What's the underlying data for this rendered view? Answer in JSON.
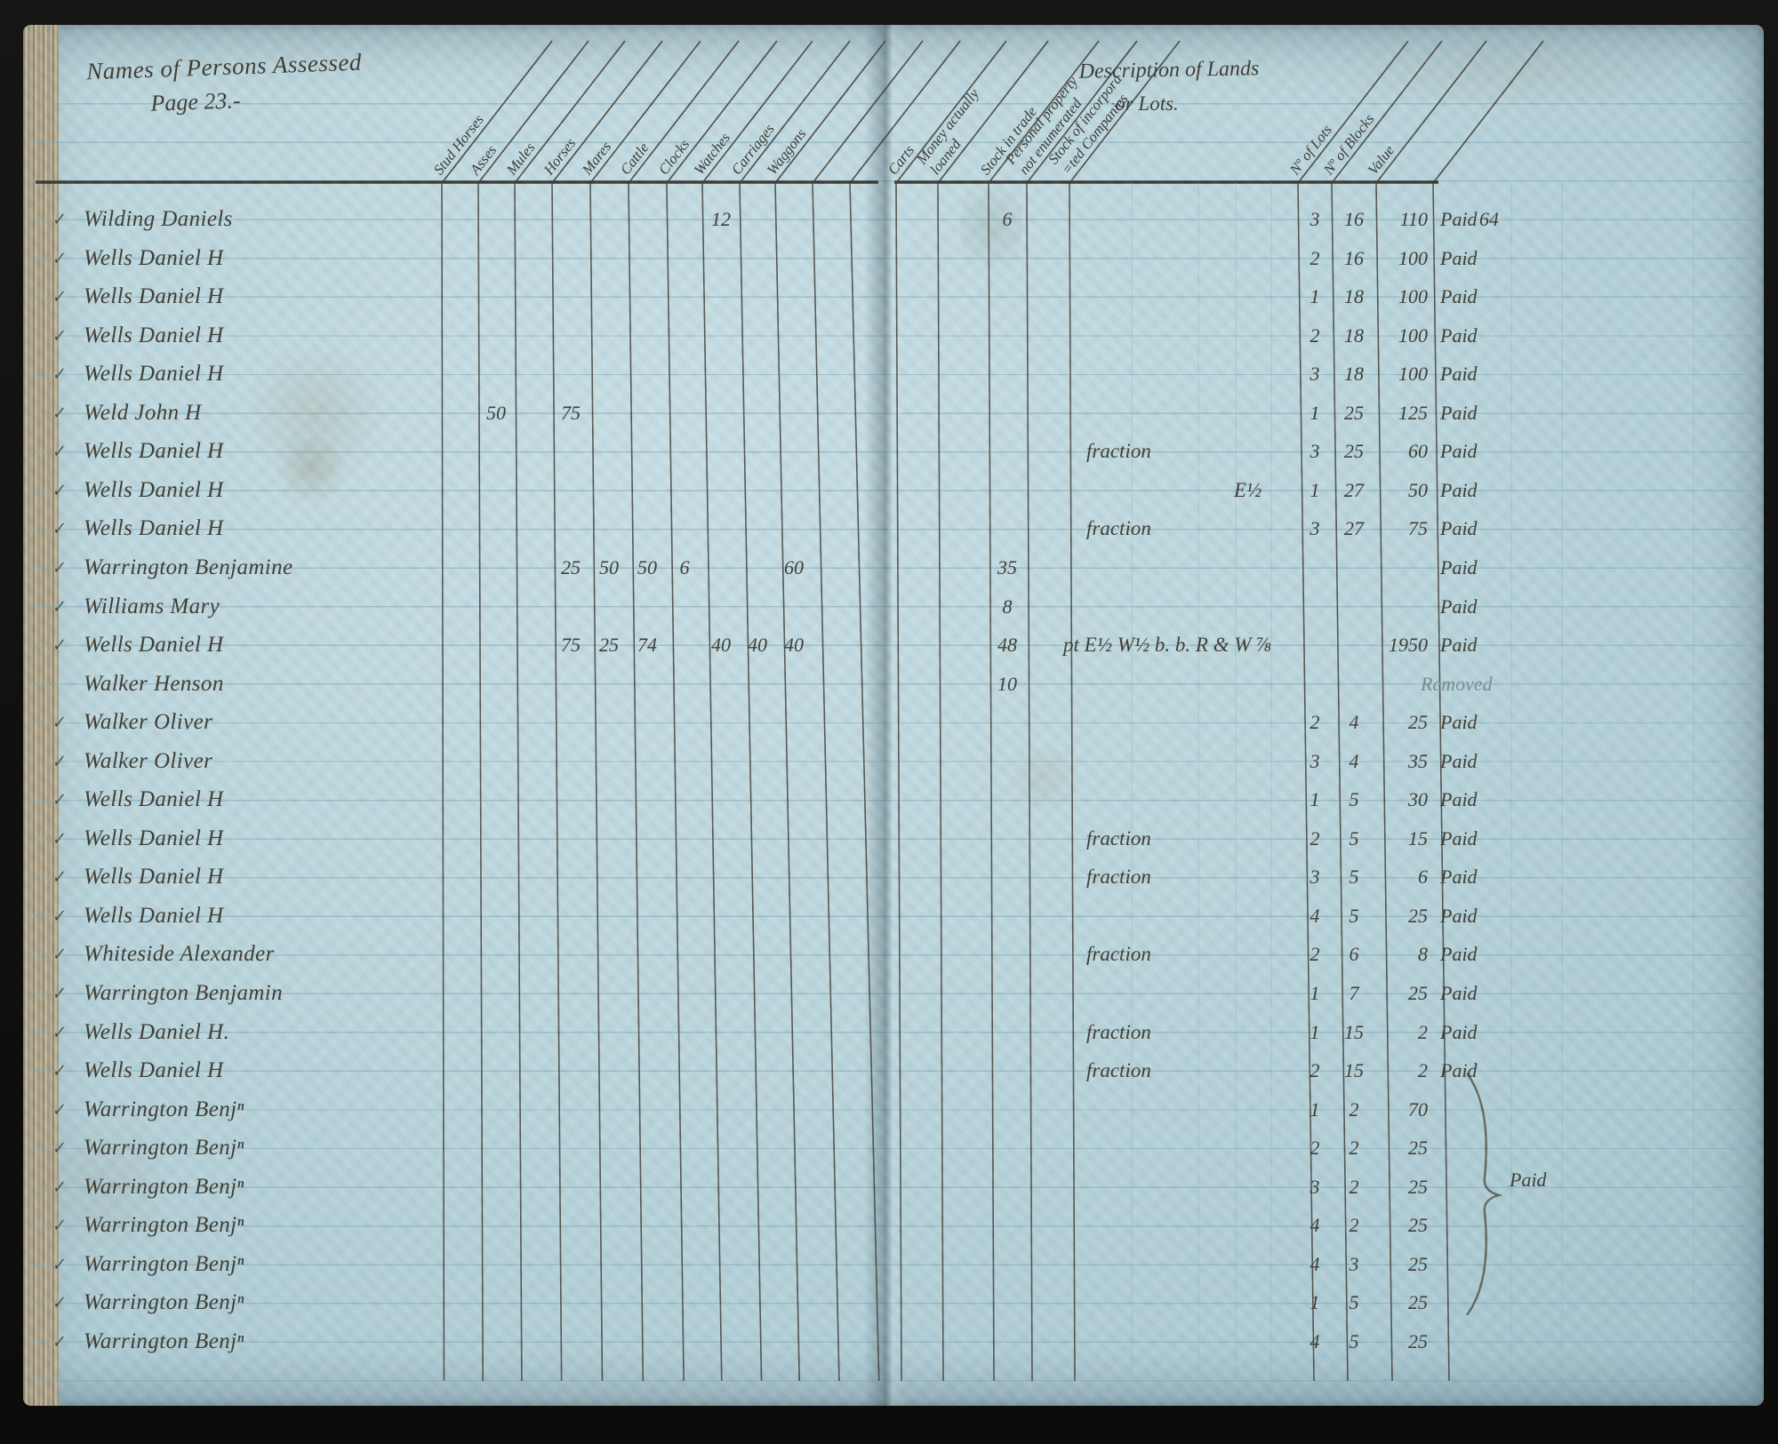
{
  "page": {
    "title_line1": "Names of Persons Assessed",
    "title_line2": "Page 23.-",
    "check_mark": "✓"
  },
  "table": {
    "description_header_line1": "Description of Lands",
    "description_header_line2": "or Lots.",
    "columns": [
      {
        "key": "stud_horses",
        "label": "Stud Horses"
      },
      {
        "key": "asses",
        "label": "Asses"
      },
      {
        "key": "mules",
        "label": "Mules"
      },
      {
        "key": "horses",
        "label": "Horses"
      },
      {
        "key": "mares",
        "label": "Mares"
      },
      {
        "key": "cattle",
        "label": "Cattle"
      },
      {
        "key": "clocks",
        "label": "Clocks"
      },
      {
        "key": "watches",
        "label": "Watches"
      },
      {
        "key": "carriages",
        "label": "Carriages"
      },
      {
        "key": "waggons",
        "label": "Waggons"
      },
      {
        "key": "carts",
        "label": "Carts"
      },
      {
        "key": "money_loaned",
        "label": "Money actually\nloaned"
      },
      {
        "key": "stock_in_trade",
        "label": "Stock in trade"
      },
      {
        "key": "personal_property",
        "label": "Personal property\nnot enumerated"
      },
      {
        "key": "stock_incorporated",
        "label": "Stock of incorpora\n=ted Companies"
      }
    ],
    "lot_columns": [
      {
        "key": "lots",
        "label": "Nº of Lots"
      },
      {
        "key": "blocks",
        "label": "Nº of Blocks"
      },
      {
        "key": "value",
        "label": "Value"
      }
    ]
  },
  "rows": [
    {
      "checked": true,
      "name": "Wilding Daniels",
      "values": {
        "watches": "12",
        "stock_in_trade": "6"
      },
      "description": "",
      "desc_pos": "",
      "lots": "3",
      "blocks": "16",
      "value": "110",
      "status": "Paid",
      "status_note": "64",
      "pencil": false
    },
    {
      "checked": true,
      "name": "Wells Daniel H",
      "values": {},
      "description": "",
      "desc_pos": "",
      "lots": "2",
      "blocks": "16",
      "value": "100",
      "status": "Paid",
      "status_note": "",
      "pencil": false
    },
    {
      "checked": true,
      "name": "Wells Daniel H",
      "values": {},
      "description": "",
      "desc_pos": "",
      "lots": "1",
      "blocks": "18",
      "value": "100",
      "status": "Paid",
      "status_note": "",
      "pencil": false
    },
    {
      "checked": true,
      "name": "Wells Daniel H",
      "values": {},
      "description": "",
      "desc_pos": "",
      "lots": "2",
      "blocks": "18",
      "value": "100",
      "status": "Paid",
      "status_note": "",
      "pencil": false
    },
    {
      "checked": true,
      "name": "Wells Daniel H",
      "values": {},
      "description": "",
      "desc_pos": "",
      "lots": "3",
      "blocks": "18",
      "value": "100",
      "status": "Paid",
      "status_note": "",
      "pencil": false
    },
    {
      "checked": true,
      "name": "Weld John H",
      "values": {
        "asses": "50",
        "horses": "75"
      },
      "description": "",
      "desc_pos": "",
      "lots": "1",
      "blocks": "25",
      "value": "125",
      "status": "Paid",
      "status_note": "",
      "pencil": false
    },
    {
      "checked": true,
      "name": "Wells Daniel H",
      "values": {},
      "description": "fraction",
      "desc_pos": "left",
      "lots": "3",
      "blocks": "25",
      "value": "60",
      "status": "Paid",
      "status_note": "",
      "pencil": false
    },
    {
      "checked": true,
      "name": "Wells Daniel H",
      "values": {},
      "description": "E½",
      "desc_pos": "mid",
      "lots": "1",
      "blocks": "27",
      "value": "50",
      "status": "Paid",
      "status_note": "",
      "pencil": false
    },
    {
      "checked": true,
      "name": "Wells Daniel H",
      "values": {},
      "description": "fraction",
      "desc_pos": "left",
      "lots": "3",
      "blocks": "27",
      "value": "75",
      "status": "Paid",
      "status_note": "",
      "pencil": false
    },
    {
      "checked": true,
      "name": "Warrington Benjamine",
      "values": {
        "horses": "25",
        "mares": "50",
        "cattle": "50",
        "clocks": "6",
        "waggons": "60",
        "stock_in_trade": "35"
      },
      "description": "",
      "desc_pos": "",
      "lots": "",
      "blocks": "",
      "value": "",
      "status": "Paid",
      "status_note": "",
      "pencil": false
    },
    {
      "checked": true,
      "name": "Williams Mary",
      "values": {
        "stock_in_trade": "8"
      },
      "description": "",
      "desc_pos": "",
      "lots": "",
      "blocks": "",
      "value": "",
      "status": "Paid",
      "status_note": "",
      "pencil": false
    },
    {
      "checked": true,
      "name": "Wells Daniel H",
      "values": {
        "horses": "75",
        "mares": "25",
        "cattle": "74",
        "watches": "40",
        "carriages": "40",
        "waggons": "40",
        "stock_in_trade": "48"
      },
      "description": "pt E½ W½ b. b. R & W ⅞",
      "desc_pos": "long",
      "lots": "",
      "blocks": "",
      "value": "1950",
      "status": "Paid",
      "status_note": "",
      "pencil": false
    },
    {
      "checked": false,
      "name": "Walker Henson",
      "values": {
        "stock_in_trade": "10"
      },
      "description": "",
      "desc_pos": "",
      "lots": "",
      "blocks": "",
      "value": "",
      "status": "Removed",
      "status_note": "",
      "pencil": true
    },
    {
      "checked": true,
      "name": "Walker Oliver",
      "values": {},
      "description": "",
      "desc_pos": "",
      "lots": "2",
      "blocks": "4",
      "value": "25",
      "status": "Paid",
      "status_note": "",
      "pencil": false
    },
    {
      "checked": true,
      "name": "Walker Oliver",
      "values": {},
      "description": "",
      "desc_pos": "",
      "lots": "3",
      "blocks": "4",
      "value": "35",
      "status": "Paid",
      "status_note": "",
      "pencil": false
    },
    {
      "checked": true,
      "name": "Wells Daniel H",
      "values": {},
      "description": "",
      "desc_pos": "",
      "lots": "1",
      "blocks": "5",
      "value": "30",
      "status": "Paid",
      "status_note": "",
      "pencil": false
    },
    {
      "checked": true,
      "name": "Wells Daniel H",
      "values": {},
      "description": "fraction",
      "desc_pos": "left",
      "lots": "2",
      "blocks": "5",
      "value": "15",
      "status": "Paid",
      "status_note": "",
      "pencil": false
    },
    {
      "checked": true,
      "name": "Wells Daniel H",
      "values": {},
      "description": "fraction",
      "desc_pos": "left",
      "lots": "3",
      "blocks": "5",
      "value": "6",
      "status": "Paid",
      "status_note": "",
      "pencil": false
    },
    {
      "checked": true,
      "name": "Wells Daniel H",
      "values": {},
      "description": "",
      "desc_pos": "",
      "lots": "4",
      "blocks": "5",
      "value": "25",
      "status": "Paid",
      "status_note": "",
      "pencil": false
    },
    {
      "checked": true,
      "name": "Whiteside Alexander",
      "values": {},
      "description": "fraction",
      "desc_pos": "left",
      "lots": "2",
      "blocks": "6",
      "value": "8",
      "status": "Paid",
      "status_note": "",
      "pencil": false
    },
    {
      "checked": true,
      "name": "Warrington Benjamin",
      "values": {},
      "description": "",
      "desc_pos": "",
      "lots": "1",
      "blocks": "7",
      "value": "25",
      "status": "Paid",
      "status_note": "",
      "pencil": false
    },
    {
      "checked": true,
      "name": "Wells Daniel H.",
      "values": {},
      "description": "fraction",
      "desc_pos": "left",
      "lots": "1",
      "blocks": "15",
      "value": "2",
      "status": "Paid",
      "status_note": "",
      "pencil": false
    },
    {
      "checked": true,
      "name": "Wells Daniel H",
      "values": {},
      "description": "fraction",
      "desc_pos": "left",
      "lots": "2",
      "blocks": "15",
      "value": "2",
      "status": "Paid",
      "status_note": "",
      "pencil": false
    },
    {
      "checked": true,
      "name": "Warrington Benjⁿ",
      "values": {},
      "description": "",
      "desc_pos": "",
      "lots": "1",
      "blocks": "2",
      "value": "70",
      "status": "",
      "status_note": "",
      "pencil": false
    },
    {
      "checked": true,
      "name": "Warrington Benjⁿ",
      "values": {},
      "description": "",
      "desc_pos": "",
      "lots": "2",
      "blocks": "2",
      "value": "25",
      "status": "",
      "status_note": "",
      "pencil": false
    },
    {
      "checked": true,
      "name": "Warrington Benjⁿ",
      "values": {},
      "description": "",
      "desc_pos": "",
      "lots": "3",
      "blocks": "2",
      "value": "25",
      "status": "",
      "status_note": "",
      "pencil": false
    },
    {
      "checked": true,
      "name": "Warrington Benjⁿ",
      "values": {},
      "description": "",
      "desc_pos": "",
      "lots": "4",
      "blocks": "2",
      "value": "25",
      "status": "",
      "status_note": "",
      "pencil": false
    },
    {
      "checked": true,
      "name": "Warrington Benjⁿ",
      "values": {},
      "description": "",
      "desc_pos": "",
      "lots": "4",
      "blocks": "3",
      "value": "25",
      "status": "",
      "status_note": "",
      "pencil": false
    },
    {
      "checked": true,
      "name": "Warrington Benjⁿ",
      "values": {},
      "description": "",
      "desc_pos": "",
      "lots": "1",
      "blocks": "5",
      "value": "25",
      "status": "",
      "status_note": "",
      "pencil": false
    },
    {
      "checked": true,
      "name": "Warrington Benjⁿ",
      "values": {},
      "description": "",
      "desc_pos": "",
      "lots": "4",
      "blocks": "5",
      "value": "25",
      "status": "",
      "status_note": "",
      "pencil": false
    }
  ],
  "footer_group": {
    "label": "Paid"
  }
}
